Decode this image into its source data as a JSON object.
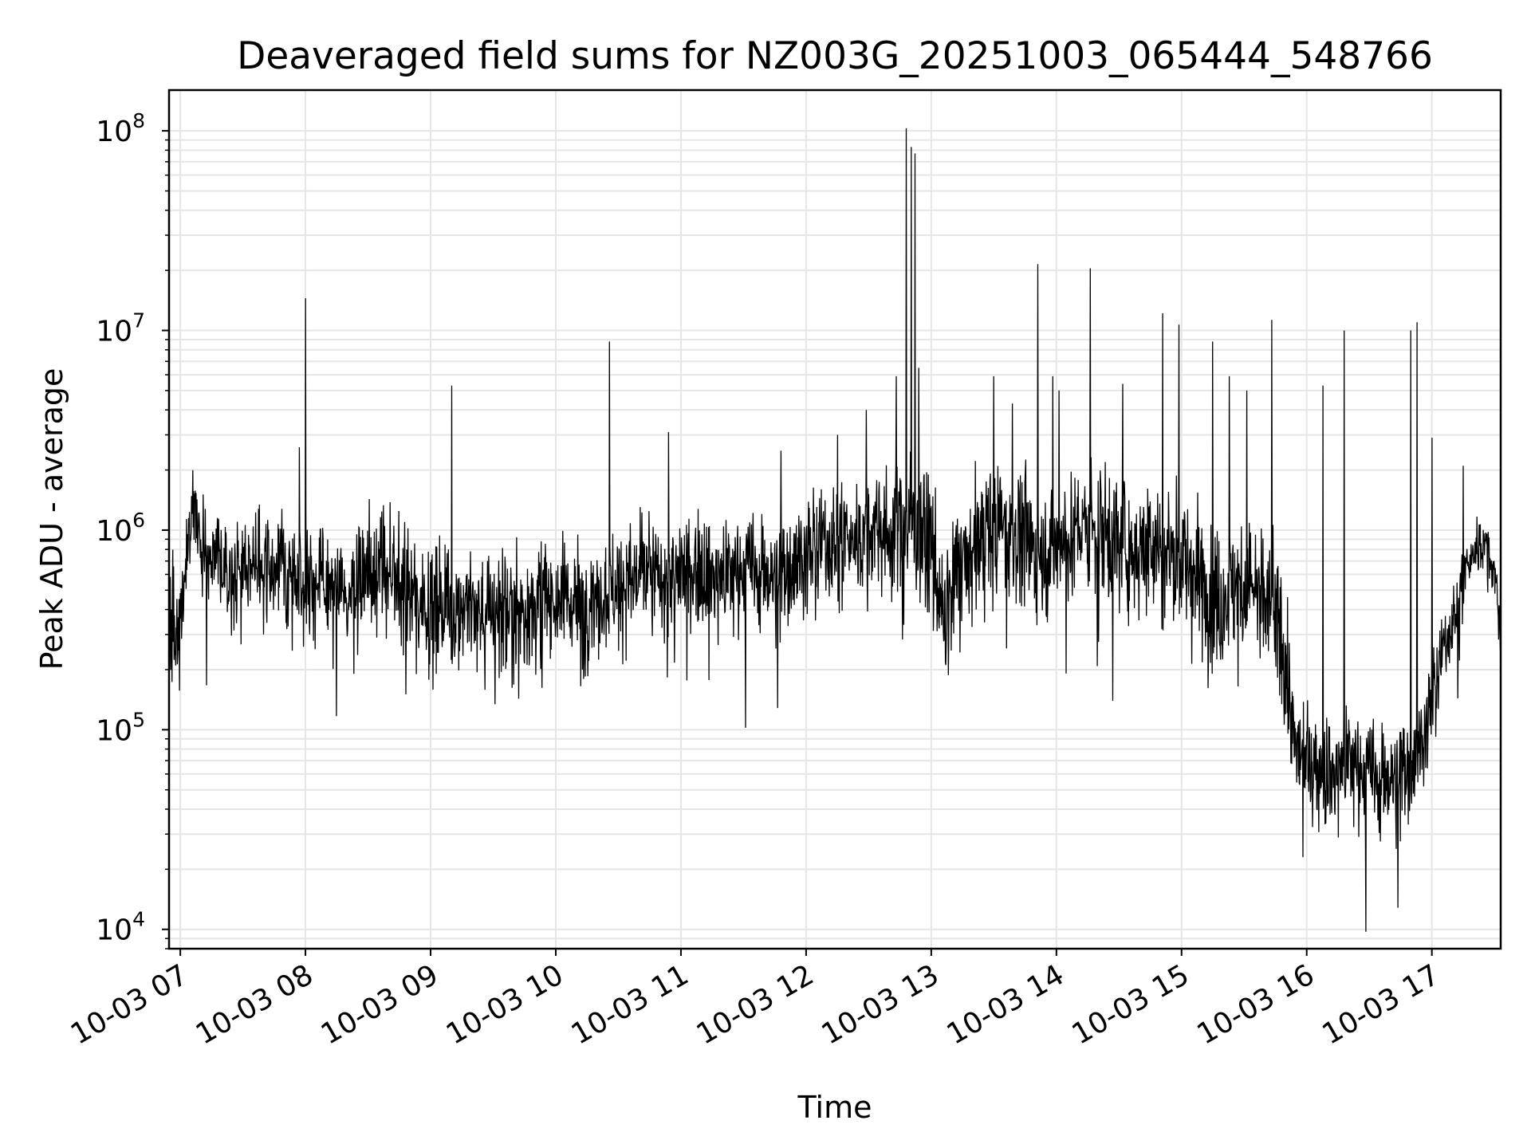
{
  "chart_data": {
    "type": "line",
    "title": "Deaveraged field sums for NZ003G_20251003_065444_548766",
    "xlabel": "Time",
    "ylabel": "Peak ADU - average",
    "yscale": "log",
    "ylim": [
      8000,
      160000000
    ],
    "xlim_hours": [
      6.91,
      17.55
    ],
    "x_tick_hours": [
      7,
      8,
      9,
      10,
      11,
      12,
      13,
      14,
      15,
      16,
      17
    ],
    "x_tick_labels": [
      "10-03 07",
      "10-03 08",
      "10-03 09",
      "10-03 10",
      "10-03 11",
      "10-03 12",
      "10-03 13",
      "10-03 14",
      "10-03 15",
      "10-03 16",
      "10-03 17"
    ],
    "y_ticks": [
      {
        "value": 10000,
        "base": "10",
        "exp": "4"
      },
      {
        "value": 100000,
        "base": "10",
        "exp": "5"
      },
      {
        "value": 1000000,
        "base": "10",
        "exp": "6"
      },
      {
        "value": 10000000,
        "base": "10",
        "exp": "7"
      },
      {
        "value": 100000000,
        "base": "10",
        "exp": "8"
      }
    ],
    "grid": true,
    "line_color": "#000000",
    "grid_color": "#e6e6e6",
    "series": [
      {
        "name": "Peak ADU - average",
        "x_hours": [
          6.91,
          6.95,
          7.0,
          7.05,
          7.1,
          7.15,
          7.2,
          7.3,
          7.4,
          7.5,
          7.6,
          7.7,
          7.8,
          7.9,
          8.0,
          8.1,
          8.2,
          8.3,
          8.4,
          8.5,
          8.6,
          8.7,
          8.8,
          8.9,
          9.0,
          9.1,
          9.2,
          9.3,
          9.4,
          9.5,
          9.6,
          9.7,
          9.8,
          9.9,
          10.0,
          10.1,
          10.2,
          10.3,
          10.4,
          10.5,
          10.6,
          10.7,
          10.8,
          10.9,
          11.0,
          11.1,
          11.2,
          11.3,
          11.4,
          11.5,
          11.6,
          11.7,
          11.8,
          11.9,
          12.0,
          12.1,
          12.2,
          12.3,
          12.4,
          12.5,
          12.6,
          12.7,
          12.8,
          12.9,
          13.0,
          13.1,
          13.2,
          13.3,
          13.4,
          13.5,
          13.6,
          13.7,
          13.8,
          13.9,
          14.0,
          14.1,
          14.2,
          14.3,
          14.4,
          14.5,
          14.6,
          14.7,
          14.8,
          14.9,
          15.0,
          15.1,
          15.2,
          15.3,
          15.4,
          15.5,
          15.6,
          15.7,
          15.8,
          15.85,
          15.9,
          16.0,
          16.1,
          16.2,
          16.3,
          16.4,
          16.5,
          16.6,
          16.7,
          16.8,
          16.9,
          17.0,
          17.1,
          17.2,
          17.3,
          17.4,
          17.5,
          17.55
        ],
        "center": [
          400000,
          300000,
          350000,
          800000,
          1500000,
          900000,
          700000,
          750000,
          600000,
          650000,
          700000,
          600000,
          650000,
          550000,
          600000,
          550000,
          500000,
          450000,
          500000,
          600000,
          700000,
          550000,
          500000,
          480000,
          420000,
          400000,
          450000,
          420000,
          380000,
          400000,
          420000,
          380000,
          400000,
          450000,
          500000,
          450000,
          420000,
          480000,
          500000,
          520000,
          550000,
          600000,
          580000,
          560000,
          600000,
          650000,
          620000,
          600000,
          580000,
          650000,
          620000,
          600000,
          620000,
          700000,
          750000,
          800000,
          850000,
          900000,
          900000,
          950000,
          1000000,
          950000,
          1100000,
          1000000,
          800000,
          300000,
          600000,
          700000,
          900000,
          1000000,
          1100000,
          950000,
          800000,
          750000,
          850000,
          900000,
          1000000,
          1100000,
          950000,
          900000,
          800000,
          850000,
          900000,
          800000,
          700000,
          600000,
          500000,
          450000,
          500000,
          550000,
          500000,
          400000,
          300000,
          150000,
          80000,
          70000,
          65000,
          60000,
          70000,
          65000,
          60000,
          55000,
          60000,
          65000,
          80000,
          130000,
          250000,
          400000,
          700000,
          900000,
          600000,
          250000
        ],
        "spread_decades": [
          0.45,
          0.4,
          0.4,
          0.35,
          0.3,
          0.35,
          0.35,
          0.35,
          0.4,
          0.4,
          0.4,
          0.4,
          0.4,
          0.45,
          0.45,
          0.45,
          0.45,
          0.45,
          0.45,
          0.45,
          0.45,
          0.45,
          0.45,
          0.45,
          0.5,
          0.5,
          0.5,
          0.5,
          0.5,
          0.5,
          0.5,
          0.5,
          0.5,
          0.5,
          0.45,
          0.45,
          0.45,
          0.45,
          0.45,
          0.45,
          0.45,
          0.45,
          0.45,
          0.45,
          0.45,
          0.45,
          0.45,
          0.45,
          0.45,
          0.45,
          0.45,
          0.45,
          0.45,
          0.45,
          0.45,
          0.45,
          0.45,
          0.45,
          0.45,
          0.45,
          0.45,
          0.5,
          0.5,
          0.5,
          0.55,
          0.55,
          0.5,
          0.5,
          0.5,
          0.5,
          0.5,
          0.5,
          0.5,
          0.5,
          0.5,
          0.5,
          0.5,
          0.5,
          0.5,
          0.5,
          0.5,
          0.5,
          0.5,
          0.55,
          0.55,
          0.55,
          0.55,
          0.55,
          0.55,
          0.55,
          0.55,
          0.55,
          0.5,
          0.45,
          0.45,
          0.45,
          0.45,
          0.45,
          0.45,
          0.45,
          0.45,
          0.45,
          0.45,
          0.45,
          0.4,
          0.35,
          0.3,
          0.25,
          0.25,
          0.25,
          0.2,
          0.2
        ],
        "spikes": [
          [
            8.0,
            14500000
          ],
          [
            7.95,
            2600000
          ],
          [
            9.17,
            5300000
          ],
          [
            10.43,
            8800000
          ],
          [
            10.9,
            3100000
          ],
          [
            11.8,
            2500000
          ],
          [
            12.25,
            3000000
          ],
          [
            12.48,
            4000000
          ],
          [
            12.72,
            5900000
          ],
          [
            12.8,
            103000000
          ],
          [
            12.84,
            83000000
          ],
          [
            12.87,
            77000000
          ],
          [
            12.9,
            6500000
          ],
          [
            13.5,
            5900000
          ],
          [
            13.65,
            4300000
          ],
          [
            13.85,
            21500000
          ],
          [
            13.97,
            5900000
          ],
          [
            14.02,
            5000000
          ],
          [
            14.27,
            20500000
          ],
          [
            14.53,
            5400000
          ],
          [
            14.85,
            12200000
          ],
          [
            14.98,
            10700000
          ],
          [
            15.25,
            8800000
          ],
          [
            15.38,
            5900000
          ],
          [
            15.52,
            5000000
          ],
          [
            15.72,
            11300000
          ],
          [
            16.13,
            5300000
          ],
          [
            16.3,
            10000000
          ],
          [
            16.83,
            10000000
          ],
          [
            16.88,
            11000000
          ],
          [
            17.0,
            2900000
          ],
          [
            17.25,
            2100000
          ]
        ]
      }
    ]
  }
}
